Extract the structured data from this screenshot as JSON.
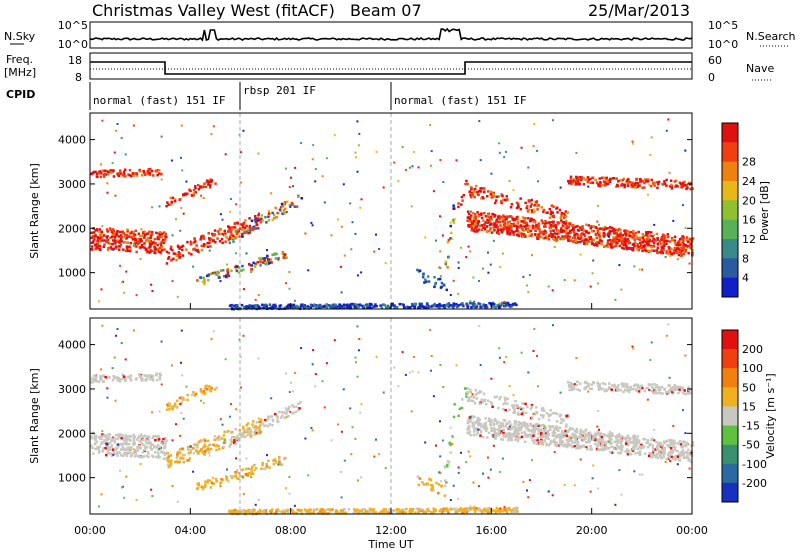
{
  "header": {
    "radar": "Christmas Valley West (fitACF)",
    "beam": "Beam 07",
    "date": "25/Mar/2013"
  },
  "labels": {
    "nsky": "N.Sky",
    "nsearch": "N.Search",
    "freq_line1": "Freq.",
    "freq_line2": "[MHz]",
    "nave": "Nave",
    "cpid": "CPID"
  },
  "noise_axis": {
    "left_ticks": [
      "10^5",
      "10^0"
    ],
    "right_ticks": [
      "10^5",
      "10^0"
    ]
  },
  "freq_axis": {
    "left_ticks": [
      "18",
      "8"
    ],
    "right_ticks": [
      "60",
      "0"
    ]
  },
  "cpid_segments": [
    {
      "start_hour": 0.0,
      "end_hour": 6.0,
      "label": "normal (fast) 151 IF"
    },
    {
      "start_hour": 6.0,
      "end_hour": 12.0,
      "label": "rbsp 201 IF"
    },
    {
      "start_hour": 12.0,
      "end_hour": 24.0,
      "label": "normal (fast) 151 IF"
    }
  ],
  "chart_data": [
    {
      "type": "heatmap",
      "name": "power",
      "ylabel": "Slant Range [km]",
      "ylim": [
        180,
        4600
      ],
      "yticks": [
        1000,
        2000,
        3000,
        4000
      ],
      "xlim": [
        0,
        24
      ],
      "colorbar_label": "Power [dB]",
      "colorbar_ticks": [
        "4",
        "8",
        "12",
        "16",
        "20",
        "24",
        "28"
      ],
      "colorbar_colors": [
        "#1020c8",
        "#2a5aa0",
        "#3a8a8a",
        "#58b058",
        "#90c030",
        "#e8b818",
        "#f08010",
        "#f04010",
        "#e01010"
      ]
    },
    {
      "type": "heatmap",
      "name": "velocity",
      "ylabel": "Slant Range [km]",
      "ylim": [
        180,
        4600
      ],
      "yticks": [
        1000,
        2000,
        3000,
        4000
      ],
      "xlim": [
        0,
        24
      ],
      "xlabel": "Time UT",
      "xticks": [
        "00:00",
        "04:00",
        "08:00",
        "12:00",
        "16:00",
        "20:00",
        "00:00"
      ],
      "colorbar_label": "Velocity [m s⁻¹]",
      "colorbar_ticks": [
        "200",
        "100",
        "50",
        "15",
        "-15",
        "-50",
        "-100",
        "-200"
      ],
      "colorbar_colors": [
        "#1830c0",
        "#2a6aa0",
        "#3a9070",
        "#60c040",
        "#c8c8c0",
        "#f0b020",
        "#f08010",
        "#f04010",
        "#e01010"
      ]
    }
  ]
}
